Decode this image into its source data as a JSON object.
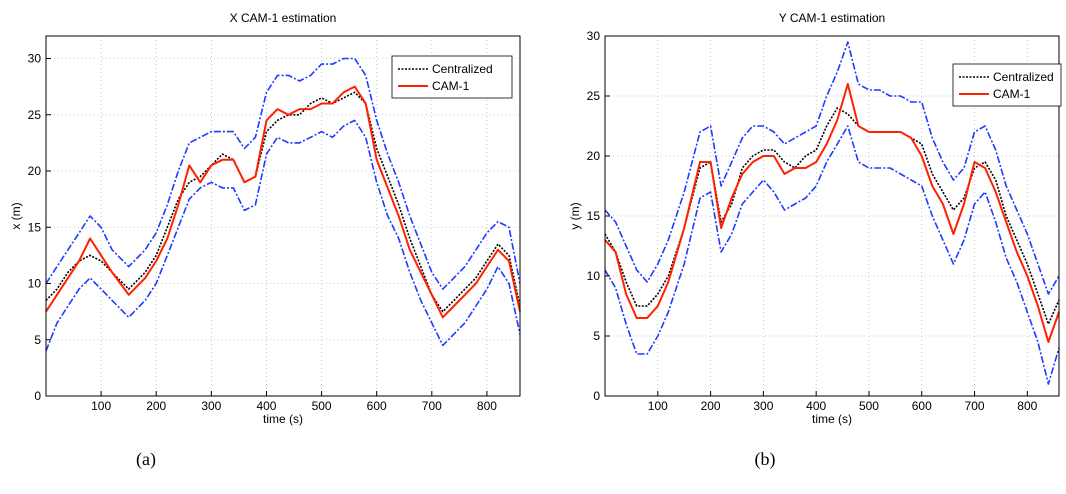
{
  "captions": [
    "(a)",
    "(b)"
  ],
  "colors": {
    "centralized": "#000000",
    "cam1": "#ff2200",
    "bounds": "#1f3bff",
    "grid": "#b8b8b8"
  },
  "chart_data": [
    {
      "type": "line",
      "title": "X CAM-1 estimation",
      "xlabel": "time (s)",
      "ylabel": "x (m)",
      "xlim": [
        0,
        860
      ],
      "ylim": [
        0,
        32
      ],
      "xticks": [
        100,
        200,
        300,
        400,
        500,
        600,
        700,
        800
      ],
      "yticks": [
        0,
        5,
        10,
        15,
        20,
        25,
        30
      ],
      "grid": true,
      "legend_position": "top-right",
      "legend": [
        "Centralized",
        "CAM-1"
      ],
      "x": [
        0,
        20,
        40,
        60,
        80,
        100,
        120,
        150,
        180,
        200,
        220,
        240,
        260,
        280,
        300,
        320,
        340,
        360,
        380,
        400,
        420,
        440,
        460,
        480,
        500,
        520,
        540,
        560,
        580,
        600,
        620,
        640,
        660,
        680,
        700,
        720,
        740,
        760,
        780,
        800,
        820,
        840,
        860
      ],
      "series": [
        {
          "name": "Centralized",
          "style": "dotted",
          "values": [
            8.5,
            9.5,
            11,
            12,
            12.5,
            12,
            11,
            9.5,
            11,
            12.5,
            15,
            17.5,
            19,
            19.5,
            20.5,
            21.5,
            21,
            19,
            19.5,
            23.5,
            24.5,
            25,
            25,
            26,
            26.5,
            26,
            26.5,
            27,
            26,
            22,
            19.5,
            17,
            14,
            11.5,
            9,
            7.5,
            8.5,
            9.5,
            10.5,
            12,
            13.5,
            12.5,
            8
          ]
        },
        {
          "name": "CAM-1",
          "style": "solid",
          "values": [
            7.5,
            9,
            10.5,
            12,
            14,
            12.5,
            11,
            9,
            10.5,
            12,
            14,
            17,
            20.5,
            19,
            20.5,
            21,
            21,
            19,
            19.5,
            24.5,
            25.5,
            25,
            25.5,
            25.5,
            26,
            26,
            27,
            27.5,
            26,
            21,
            18.5,
            16,
            13,
            11,
            9,
            7,
            8,
            9,
            10,
            11.5,
            13,
            12,
            7.5
          ]
        },
        {
          "name": "upper bound",
          "style": "dashdot",
          "values": [
            10,
            11.5,
            13,
            14.5,
            16,
            15,
            13,
            11.5,
            13,
            14.5,
            17,
            20,
            22.5,
            23,
            23.5,
            23.5,
            23.5,
            22,
            23,
            27,
            28.5,
            28.5,
            28,
            28.5,
            29.5,
            29.5,
            30,
            30,
            28.5,
            24.5,
            21.5,
            19,
            16,
            13.5,
            11,
            9.5,
            10.5,
            11.5,
            13,
            14.5,
            15.5,
            15,
            10
          ]
        },
        {
          "name": "lower bound",
          "style": "dashdot",
          "values": [
            4,
            6.5,
            8,
            9.5,
            10.5,
            9.5,
            8.5,
            7,
            8.5,
            10,
            12.5,
            15,
            17.5,
            18.5,
            19,
            18.5,
            18.5,
            16.5,
            17,
            21.5,
            23,
            22.5,
            22.5,
            23,
            23.5,
            23,
            24,
            24.5,
            23,
            19,
            16,
            14,
            11,
            8.5,
            6.5,
            4.5,
            5.5,
            6.5,
            8,
            9.5,
            11.5,
            10,
            5.5
          ]
        }
      ]
    },
    {
      "type": "line",
      "title": "Y CAM-1 estimation",
      "xlabel": "time (s)",
      "ylabel": "y (m)",
      "xlim": [
        0,
        860
      ],
      "ylim": [
        0,
        30
      ],
      "xticks": [
        100,
        200,
        300,
        400,
        500,
        600,
        700,
        800
      ],
      "yticks": [
        0,
        5,
        10,
        15,
        20,
        25,
        30
      ],
      "grid": true,
      "legend_position": "top-right",
      "legend": [
        "Centralized",
        "CAM-1"
      ],
      "x": [
        0,
        20,
        40,
        60,
        80,
        100,
        120,
        150,
        180,
        200,
        220,
        240,
        260,
        280,
        300,
        320,
        340,
        360,
        380,
        400,
        420,
        440,
        460,
        480,
        500,
        520,
        540,
        560,
        580,
        600,
        620,
        640,
        660,
        680,
        700,
        720,
        740,
        760,
        780,
        800,
        820,
        840,
        860
      ],
      "series": [
        {
          "name": "Centralized",
          "style": "dotted",
          "values": [
            13.5,
            12,
            9.5,
            7.5,
            7.5,
            8.5,
            10,
            14,
            19,
            19.5,
            14.5,
            16,
            19,
            20,
            20.5,
            20.5,
            19.5,
            19,
            20,
            20.5,
            22.5,
            24,
            23.5,
            22.5,
            22,
            22,
            22,
            22,
            21.5,
            21,
            18.5,
            17,
            15.5,
            16.5,
            19,
            19.5,
            18,
            15,
            13,
            11,
            8.5,
            6,
            8
          ]
        },
        {
          "name": "CAM-1",
          "style": "solid",
          "values": [
            13,
            12,
            8.5,
            6.5,
            6.5,
            7.5,
            9.5,
            14,
            19.5,
            19.5,
            14,
            16.5,
            18.5,
            19.5,
            20,
            20,
            18.5,
            19,
            19,
            19.5,
            21,
            23,
            26,
            22.5,
            22,
            22,
            22,
            22,
            21.5,
            20,
            17.5,
            16,
            13.5,
            16,
            19.5,
            19,
            17,
            14.5,
            12,
            10,
            7.5,
            4.5,
            7
          ]
        },
        {
          "name": "upper bound",
          "style": "dashdot",
          "values": [
            15.5,
            14.5,
            12.5,
            10.5,
            9.5,
            11,
            13,
            17,
            22,
            22.5,
            17.5,
            19.5,
            21.5,
            22.5,
            22.5,
            22,
            21,
            21.5,
            22,
            22.5,
            25,
            27,
            29.5,
            26,
            25.5,
            25.5,
            25,
            25,
            24.5,
            24.5,
            21.5,
            19.5,
            18,
            19,
            22,
            22.5,
            20.5,
            17.5,
            15.5,
            13.5,
            11,
            8.5,
            10
          ]
        },
        {
          "name": "lower bound",
          "style": "dashdot",
          "values": [
            10.5,
            9,
            6,
            3.5,
            3.5,
            5,
            7,
            11,
            16.5,
            17,
            12,
            13.5,
            16,
            17,
            18,
            17,
            15.5,
            16,
            16.5,
            17.5,
            19.5,
            21,
            22.5,
            19.5,
            19,
            19,
            19,
            18.5,
            18,
            17.5,
            15,
            13,
            11,
            13,
            16,
            17,
            14.5,
            11.5,
            9.5,
            7,
            4.5,
            1,
            4
          ]
        }
      ]
    }
  ]
}
